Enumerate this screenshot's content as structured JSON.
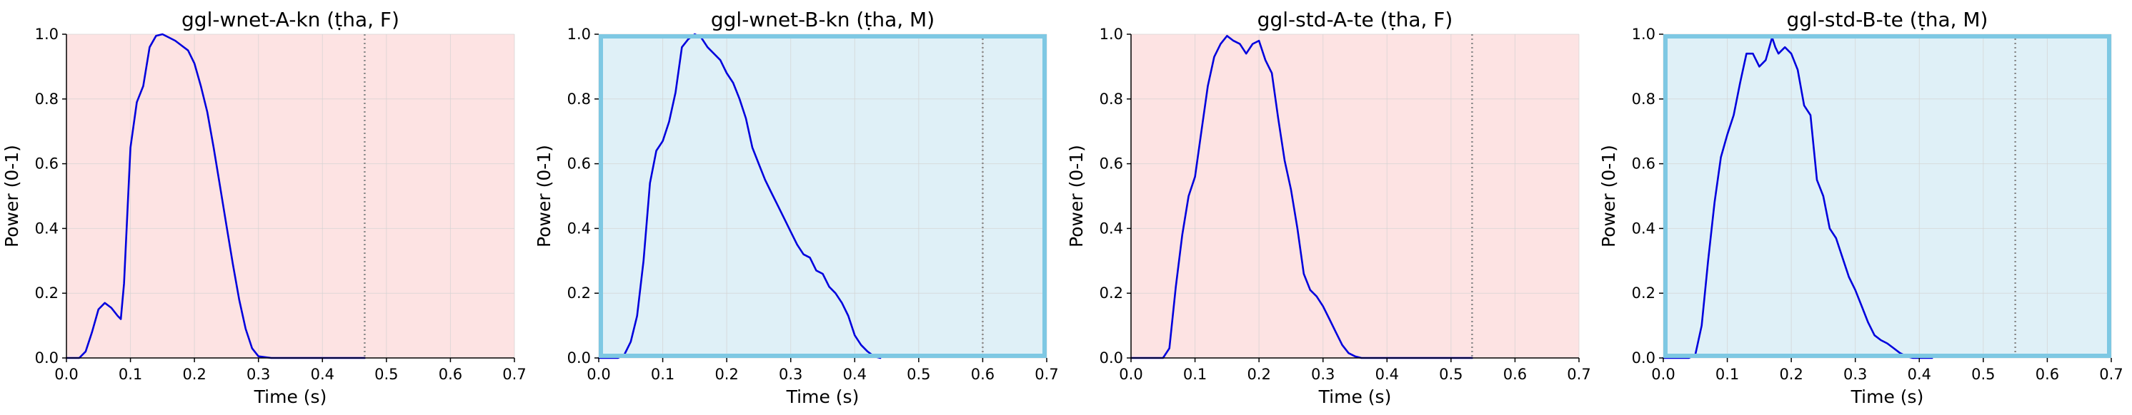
{
  "theme": {
    "female_bg": "#fde3e3",
    "male_bg": "#dff0f7",
    "male_border": "#7ec8e3",
    "line_color": "#0000dd",
    "grid_color": "#d3d3d3",
    "marker_line_color": "#888888"
  },
  "chart_data": [
    {
      "type": "line",
      "title": "ggl-wnet-A-kn (ṭha, F)",
      "xlabel": "Time (s)",
      "ylabel": "Power (0-1)",
      "xlim": [
        0,
        0.7
      ],
      "ylim": [
        0,
        1
      ],
      "xticks": [
        "0.0",
        "0.1",
        "0.2",
        "0.3",
        "0.4",
        "0.5",
        "0.6",
        "0.7"
      ],
      "yticks": [
        "0.0",
        "0.2",
        "0.4",
        "0.6",
        "0.8",
        "1.0"
      ],
      "grid": true,
      "background": "female",
      "marker_x": 0.466,
      "x": [
        0.0,
        0.02,
        0.03,
        0.04,
        0.05,
        0.06,
        0.07,
        0.08,
        0.085,
        0.09,
        0.1,
        0.11,
        0.12,
        0.13,
        0.14,
        0.15,
        0.16,
        0.17,
        0.18,
        0.19,
        0.2,
        0.21,
        0.22,
        0.23,
        0.24,
        0.25,
        0.26,
        0.27,
        0.28,
        0.29,
        0.3,
        0.32,
        0.34,
        0.4,
        0.466
      ],
      "y": [
        0.0,
        0.0,
        0.02,
        0.08,
        0.15,
        0.17,
        0.155,
        0.13,
        0.12,
        0.23,
        0.65,
        0.79,
        0.84,
        0.96,
        0.995,
        1.0,
        0.99,
        0.98,
        0.965,
        0.95,
        0.91,
        0.84,
        0.76,
        0.65,
        0.53,
        0.41,
        0.29,
        0.18,
        0.09,
        0.03,
        0.005,
        0.0,
        0.0,
        0.0,
        0.0
      ]
    },
    {
      "type": "line",
      "title": "ggl-wnet-B-kn (ṭha, M)",
      "xlabel": "Time (s)",
      "ylabel": "Power (0-1)",
      "xlim": [
        0,
        0.7
      ],
      "ylim": [
        0,
        1
      ],
      "xticks": [
        "0.0",
        "0.1",
        "0.2",
        "0.3",
        "0.4",
        "0.5",
        "0.6",
        "0.7"
      ],
      "yticks": [
        "0.0",
        "0.2",
        "0.4",
        "0.6",
        "0.8",
        "1.0"
      ],
      "grid": true,
      "background": "male",
      "marker_x": 0.6,
      "x": [
        0.0,
        0.03,
        0.04,
        0.05,
        0.06,
        0.07,
        0.08,
        0.09,
        0.1,
        0.11,
        0.12,
        0.13,
        0.14,
        0.15,
        0.16,
        0.17,
        0.18,
        0.19,
        0.2,
        0.21,
        0.22,
        0.23,
        0.24,
        0.25,
        0.26,
        0.27,
        0.28,
        0.29,
        0.3,
        0.31,
        0.32,
        0.33,
        0.34,
        0.35,
        0.36,
        0.37,
        0.38,
        0.39,
        0.4,
        0.41,
        0.42,
        0.43,
        0.44
      ],
      "y": [
        0.0,
        0.0,
        0.01,
        0.05,
        0.13,
        0.3,
        0.54,
        0.64,
        0.67,
        0.73,
        0.82,
        0.96,
        0.985,
        1.0,
        0.99,
        0.96,
        0.94,
        0.92,
        0.88,
        0.85,
        0.8,
        0.74,
        0.65,
        0.6,
        0.55,
        0.51,
        0.47,
        0.43,
        0.39,
        0.35,
        0.32,
        0.31,
        0.27,
        0.26,
        0.22,
        0.2,
        0.17,
        0.13,
        0.07,
        0.04,
        0.02,
        0.005,
        0.0
      ]
    },
    {
      "type": "line",
      "title": "ggl-std-A-te (ṭha, F)",
      "xlabel": "Time (s)",
      "ylabel": "Power (0-1)",
      "xlim": [
        0,
        0.7
      ],
      "ylim": [
        0,
        1
      ],
      "xticks": [
        "0.0",
        "0.1",
        "0.2",
        "0.3",
        "0.4",
        "0.5",
        "0.6",
        "0.7"
      ],
      "yticks": [
        "0.0",
        "0.2",
        "0.4",
        "0.6",
        "0.8",
        "1.0"
      ],
      "grid": true,
      "background": "female",
      "marker_x": 0.533,
      "x": [
        0.0,
        0.05,
        0.06,
        0.07,
        0.08,
        0.09,
        0.1,
        0.11,
        0.12,
        0.13,
        0.14,
        0.15,
        0.16,
        0.17,
        0.18,
        0.19,
        0.2,
        0.21,
        0.22,
        0.23,
        0.24,
        0.25,
        0.26,
        0.27,
        0.28,
        0.29,
        0.3,
        0.31,
        0.32,
        0.33,
        0.34,
        0.35,
        0.36,
        0.38,
        0.4,
        0.533
      ],
      "y": [
        0.0,
        0.0,
        0.03,
        0.22,
        0.38,
        0.5,
        0.56,
        0.7,
        0.84,
        0.93,
        0.97,
        0.995,
        0.98,
        0.97,
        0.94,
        0.97,
        0.98,
        0.92,
        0.88,
        0.74,
        0.61,
        0.52,
        0.4,
        0.26,
        0.21,
        0.19,
        0.16,
        0.12,
        0.08,
        0.04,
        0.015,
        0.005,
        0.0,
        0.0,
        0.0,
        0.0
      ]
    },
    {
      "type": "line",
      "title": "ggl-std-B-te (ṭha, M)",
      "xlabel": "Time (s)",
      "ylabel": "Power (0-1)",
      "xlim": [
        0,
        0.7
      ],
      "ylim": [
        0,
        1
      ],
      "xticks": [
        "0.0",
        "0.1",
        "0.2",
        "0.3",
        "0.4",
        "0.5",
        "0.6",
        "0.7"
      ],
      "yticks": [
        "0.0",
        "0.2",
        "0.4",
        "0.6",
        "0.8",
        "1.0"
      ],
      "grid": true,
      "background": "male",
      "marker_x": 0.55,
      "x": [
        0.0,
        0.04,
        0.05,
        0.06,
        0.07,
        0.08,
        0.09,
        0.1,
        0.11,
        0.12,
        0.13,
        0.14,
        0.15,
        0.16,
        0.17,
        0.175,
        0.18,
        0.19,
        0.2,
        0.21,
        0.22,
        0.23,
        0.24,
        0.25,
        0.26,
        0.27,
        0.28,
        0.29,
        0.3,
        0.31,
        0.32,
        0.33,
        0.34,
        0.35,
        0.36,
        0.37,
        0.38,
        0.39,
        0.4,
        0.42
      ],
      "y": [
        0.0,
        0.0,
        0.01,
        0.1,
        0.3,
        0.48,
        0.62,
        0.69,
        0.75,
        0.85,
        0.94,
        0.94,
        0.9,
        0.92,
        0.99,
        0.96,
        0.94,
        0.96,
        0.94,
        0.89,
        0.78,
        0.75,
        0.55,
        0.5,
        0.4,
        0.37,
        0.31,
        0.25,
        0.21,
        0.16,
        0.11,
        0.07,
        0.055,
        0.045,
        0.03,
        0.015,
        0.005,
        0.0,
        0.0,
        0.0
      ]
    }
  ]
}
